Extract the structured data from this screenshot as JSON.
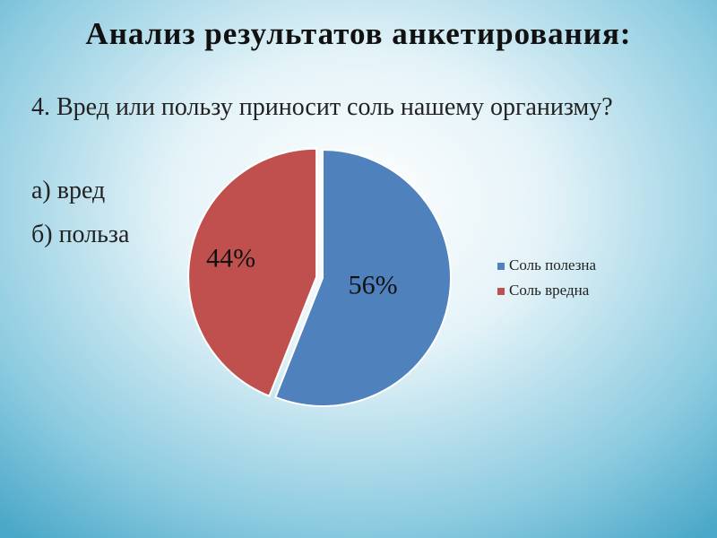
{
  "chart_data": {
    "type": "pie",
    "title": "Анализ результатов анкетирования:",
    "annotations": [
      "4. Вред или пользу приносит соль нашему организму?",
      "а) вред",
      "б) польза"
    ],
    "categories": [
      "Соль полезна",
      "Соль вредна"
    ],
    "values": [
      56,
      44
    ],
    "value_labels": [
      "56%",
      "44%"
    ],
    "colors": [
      "#4f81bd",
      "#c0504d"
    ],
    "legend": "right"
  }
}
